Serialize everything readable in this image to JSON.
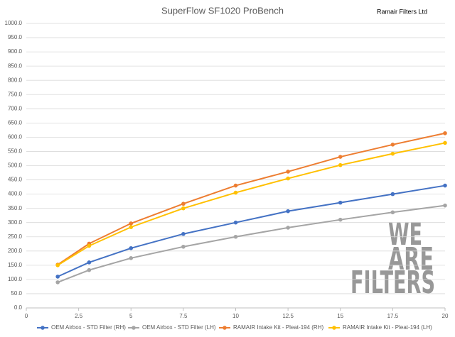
{
  "chart_data": {
    "type": "line",
    "title": "SuperFlow SF1020 ProBench",
    "brand": "Ramair Filters Ltd",
    "watermark": [
      "WE",
      "ARE",
      "FILTERS"
    ],
    "x": [
      1.5,
      3,
      5,
      7.5,
      10,
      12.5,
      15,
      17.5,
      20
    ],
    "series": [
      {
        "name": "OEM Airbox - STD Filter (RH)",
        "color": "#4472c4",
        "values": [
          110,
          160,
          210,
          260,
          300,
          340,
          370,
          400,
          430
        ]
      },
      {
        "name": "OEM Airbox - STD Filter (LH)",
        "color": "#a5a5a5",
        "values": [
          90,
          133,
          175,
          215,
          250,
          282,
          310,
          336,
          360
        ]
      },
      {
        "name": "RAMAIR Intake Kit - Pleat-194 (RH)",
        "color": "#ed7d31",
        "values": [
          152,
          226,
          297,
          366,
          430,
          479,
          531,
          574,
          614
        ]
      },
      {
        "name": "RAMAIR Intake Kit - Pleat-194 (LH)",
        "color": "#ffc000",
        "values": [
          150,
          218,
          284,
          350,
          405,
          455,
          502,
          542,
          580
        ]
      }
    ],
    "xlim": [
      0,
      20
    ],
    "xticks": [
      0,
      2.5,
      5,
      7.5,
      10,
      12.5,
      15,
      17.5,
      20
    ],
    "ylim": [
      0,
      1000
    ],
    "yticks": [
      {
        "value": 0,
        "label": "0.0"
      },
      {
        "value": 50,
        "label": "50.0"
      },
      {
        "value": 100,
        "label": "100.0"
      },
      {
        "value": 150,
        "label": "150.0"
      },
      {
        "value": 200,
        "label": "200.0"
      },
      {
        "value": 250,
        "label": "250.0"
      },
      {
        "value": 300,
        "label": "300.0"
      },
      {
        "value": 350,
        "label": "350.0"
      },
      {
        "value": 400,
        "label": "400.0"
      },
      {
        "value": 450,
        "label": "450.0"
      },
      {
        "value": 500,
        "label": "500.0"
      },
      {
        "value": 550,
        "label": "550.0"
      },
      {
        "value": 600,
        "label": "600.0"
      },
      {
        "value": 650,
        "label": "650.0"
      },
      {
        "value": 700,
        "label": "700.0"
      },
      {
        "value": 750,
        "label": "750.0"
      },
      {
        "value": 800,
        "label": "800.0"
      },
      {
        "value": 850,
        "label": "850.0"
      },
      {
        "value": 900,
        "label": "900.0"
      },
      {
        "value": 950,
        "label": "950.0"
      },
      {
        "value": 1000,
        "label": "1000.0"
      }
    ],
    "grid": true,
    "legend": "bottom"
  }
}
